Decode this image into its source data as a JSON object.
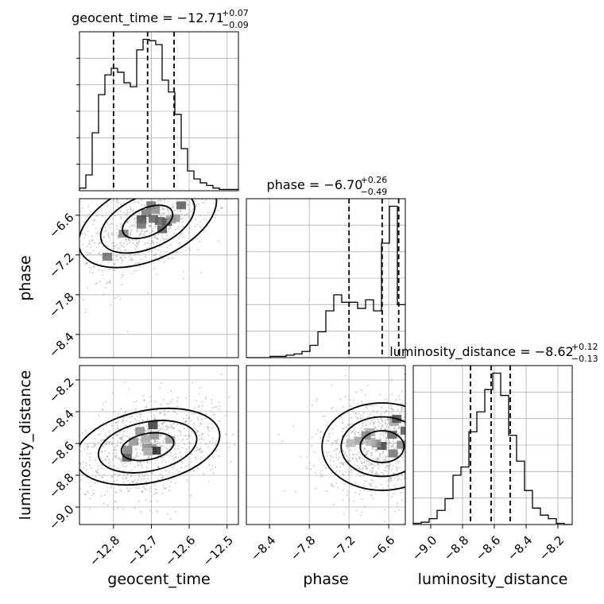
{
  "chart_data": {
    "type": "corner",
    "parameters": [
      {
        "name": "geocent_time",
        "label": "geocent_time",
        "title": "geocent_time = −12.71",
        "title_plus": "+0.07",
        "title_minus": "−0.09",
        "range": [
          -12.89,
          -12.47
        ],
        "ticks": [
          -12.8,
          -12.7,
          -12.6,
          -12.5
        ],
        "tick_labels": [
          "−12.8",
          "−12.7",
          "−12.6",
          "−12.5"
        ],
        "quantiles": [
          -12.8,
          -12.71,
          -12.64
        ],
        "hist_counts": [
          2,
          12,
          44,
          73,
          88,
          93,
          90,
          82,
          79,
          107,
          115,
          114,
          111,
          84,
          75,
          58,
          32,
          15,
          9,
          6,
          4,
          2,
          1,
          1,
          1
        ]
      },
      {
        "name": "phase",
        "label": "phase",
        "title": "phase = −6.70",
        "title_plus": "+0.26",
        "title_minus": "−0.49",
        "range": [
          -8.75,
          -6.35
        ],
        "ticks": [
          -8.4,
          -7.8,
          -7.2,
          -6.6
        ],
        "tick_labels": [
          "−8.4",
          "−7.8",
          "−7.2",
          "−6.6"
        ],
        "quantiles": [
          -7.2,
          -6.7,
          -6.45
        ],
        "hist_counts": [
          0,
          0,
          0,
          1,
          1,
          2,
          3,
          5,
          10,
          21,
          38,
          51,
          45,
          45,
          40,
          47,
          38,
          93,
          123,
          43
        ]
      },
      {
        "name": "luminosity_distance",
        "label": "luminosity_distance",
        "title": "luminosity_distance = −8.62",
        "title_plus": "+0.12",
        "title_minus": "−0.13",
        "range": [
          -9.11,
          -8.11
        ],
        "ticks": [
          -9.0,
          -8.8,
          -8.6,
          -8.4,
          -8.2
        ],
        "tick_labels": [
          "−9.0",
          "−8.8",
          "−8.6",
          "−8.4",
          "−8.2"
        ],
        "quantiles": [
          -8.75,
          -8.62,
          -8.5
        ],
        "hist_counts": [
          1,
          2,
          5,
          12,
          22,
          42,
          49,
          79,
          96,
          115,
          129,
          110,
          76,
          54,
          29,
          14,
          8,
          5,
          1,
          0
        ]
      }
    ],
    "pairs": [
      {
        "x": "geocent_time",
        "y": "phase",
        "correlation": 0.6
      },
      {
        "x": "geocent_time",
        "y": "luminosity_distance",
        "correlation": 0.35
      },
      {
        "x": "phase",
        "y": "luminosity_distance",
        "correlation": 0.0
      }
    ],
    "grid": true
  }
}
